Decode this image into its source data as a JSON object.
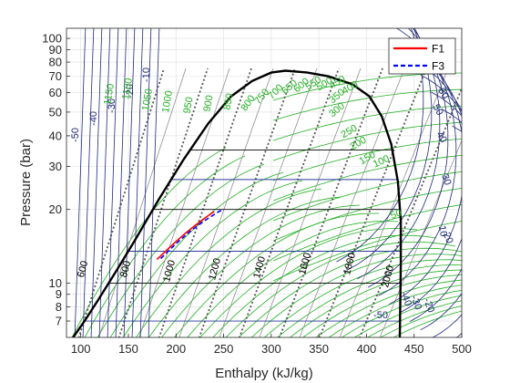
{
  "chart_data": {
    "type": "line",
    "xlabel": "Enthalpy (kJ/kg)",
    "ylabel": "Pressure (bar)",
    "xlim": [
      85,
      500
    ],
    "ylim": [
      6,
      110
    ],
    "y_scale": "log",
    "grid": true,
    "legend_position": "top-right",
    "x_ticks": [
      "100",
      "150",
      "200",
      "250",
      "300",
      "350",
      "400",
      "450",
      "500"
    ],
    "y_ticks": [
      "7",
      "8",
      "9",
      "10",
      "20",
      "30",
      "40",
      "50",
      "60",
      "70",
      "80",
      "90",
      "100"
    ],
    "saturation_dome": {
      "color": "#000000",
      "critical_point": {
        "h": 315,
        "p": 73.8
      },
      "liquid_line": [
        {
          "h": 92,
          "p": 6
        },
        {
          "h": 104,
          "p": 7
        },
        {
          "h": 118,
          "p": 8.5
        },
        {
          "h": 136,
          "p": 11
        },
        {
          "h": 157,
          "p": 15
        },
        {
          "h": 182,
          "p": 22
        },
        {
          "h": 208,
          "p": 32
        },
        {
          "h": 234,
          "p": 45
        },
        {
          "h": 258,
          "p": 58
        },
        {
          "h": 280,
          "p": 67
        },
        {
          "h": 300,
          "p": 72.5
        },
        {
          "h": 315,
          "p": 73.8
        }
      ],
      "vapor_line": [
        {
          "h": 315,
          "p": 73.8
        },
        {
          "h": 338,
          "p": 72.5
        },
        {
          "h": 360,
          "p": 70
        },
        {
          "h": 385,
          "p": 65
        },
        {
          "h": 403,
          "p": 58
        },
        {
          "h": 416,
          "p": 48
        },
        {
          "h": 426,
          "p": 37
        },
        {
          "h": 433,
          "p": 26
        },
        {
          "h": 436,
          "p": 18
        },
        {
          "h": 436,
          "p": 12
        },
        {
          "h": 435,
          "p": 6
        }
      ]
    },
    "isobars_bar": [
      7,
      10,
      13.5,
      20,
      26.5,
      35
    ],
    "isotherm_labels_blue": [
      "-50",
      "-40",
      "-30",
      "-20",
      "-10",
      "60",
      "50",
      "40",
      "30",
      "20",
      "10",
      "-50",
      "-40",
      "-30",
      "-20"
    ],
    "isochore_labels_green": [
      "1150",
      "1100",
      "1050",
      "1000",
      "950",
      "900",
      "850",
      "800",
      "750",
      "700",
      "650",
      "600",
      "550",
      "500",
      "450",
      "400",
      "350",
      "300",
      "250",
      "200",
      "150",
      "100",
      "50"
    ],
    "isentrope_labels_gray": [
      "600",
      "800",
      "1000",
      "1200",
      "1400",
      "1600",
      "1800",
      "2000"
    ],
    "series": [
      {
        "name": "F1",
        "color": "#ff0000",
        "style": "solid",
        "h": [
          180,
          190,
          200,
          210,
          220,
          230,
          240
        ],
        "p": [
          12.5,
          13.6,
          14.8,
          16.0,
          17.2,
          18.4,
          19.6
        ]
      },
      {
        "name": "F3",
        "color": "#0000ff",
        "style": "dashed",
        "h": [
          184,
          200,
          215,
          230,
          245,
          250
        ],
        "p": [
          12.6,
          14.5,
          16.3,
          18.0,
          19.6,
          20.0
        ]
      }
    ]
  }
}
